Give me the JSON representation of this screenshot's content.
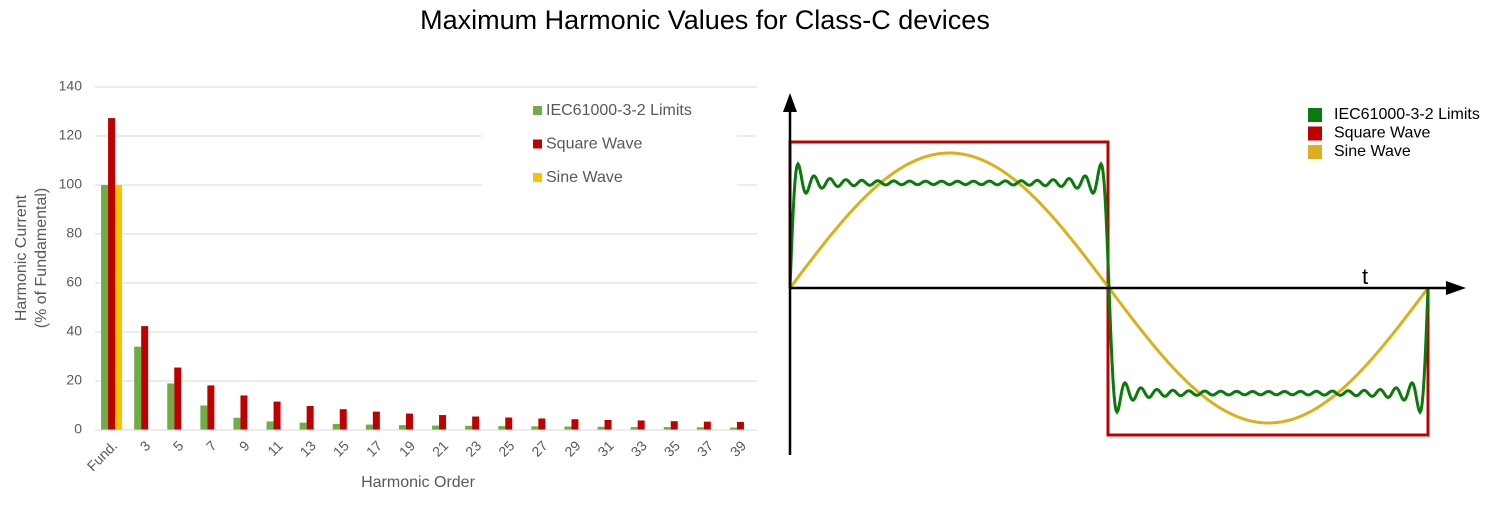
{
  "title": "Maximum Harmonic Values for Class-C devices",
  "chart_data": [
    {
      "type": "bar",
      "categories": [
        "Fund.",
        "3",
        "5",
        "7",
        "9",
        "11",
        "13",
        "15",
        "17",
        "19",
        "21",
        "23",
        "25",
        "27",
        "29",
        "31",
        "33",
        "35",
        "37",
        "39"
      ],
      "series": [
        {
          "name": "IEC61000-3-2 Limits",
          "color": "#70ad47",
          "values": [
            100,
            34,
            19,
            10,
            5,
            3.5,
            3,
            2.5,
            2.2,
            2,
            1.8,
            1.7,
            1.6,
            1.5,
            1.4,
            1.3,
            1.2,
            1.2,
            1.1,
            1
          ]
        },
        {
          "name": "Square Wave",
          "color": "#c00000",
          "values": [
            127.3,
            42.4,
            25.5,
            18.2,
            14.1,
            11.6,
            9.8,
            8.5,
            7.5,
            6.7,
            6.1,
            5.5,
            5.1,
            4.7,
            4.4,
            4.1,
            3.9,
            3.6,
            3.4,
            3.3
          ]
        },
        {
          "name": "Sine Wave",
          "color": "#ffc000",
          "values": [
            100,
            0,
            0,
            0,
            0,
            0,
            0,
            0,
            0,
            0,
            0,
            0,
            0,
            0,
            0,
            0,
            0,
            0,
            0,
            0
          ]
        }
      ],
      "ylim": [
        0,
        140
      ],
      "yticks": [
        0,
        20,
        40,
        60,
        80,
        100,
        120,
        140
      ],
      "grid": true,
      "y_label": [
        "Harmonic Current",
        "(% of Fundamental)"
      ],
      "x_label": "Harmonic Order",
      "legend": "top-right"
    },
    {
      "type": "waveform",
      "x_label": "t",
      "series": [
        {
          "name": "IEC61000-3-2 Limits",
          "color": "#0a7a0a"
        },
        {
          "name": "Square Wave",
          "color": "#c00000"
        },
        {
          "name": "Sine Wave",
          "color": "#dbb01c"
        }
      ],
      "legend": "top-right"
    }
  ]
}
